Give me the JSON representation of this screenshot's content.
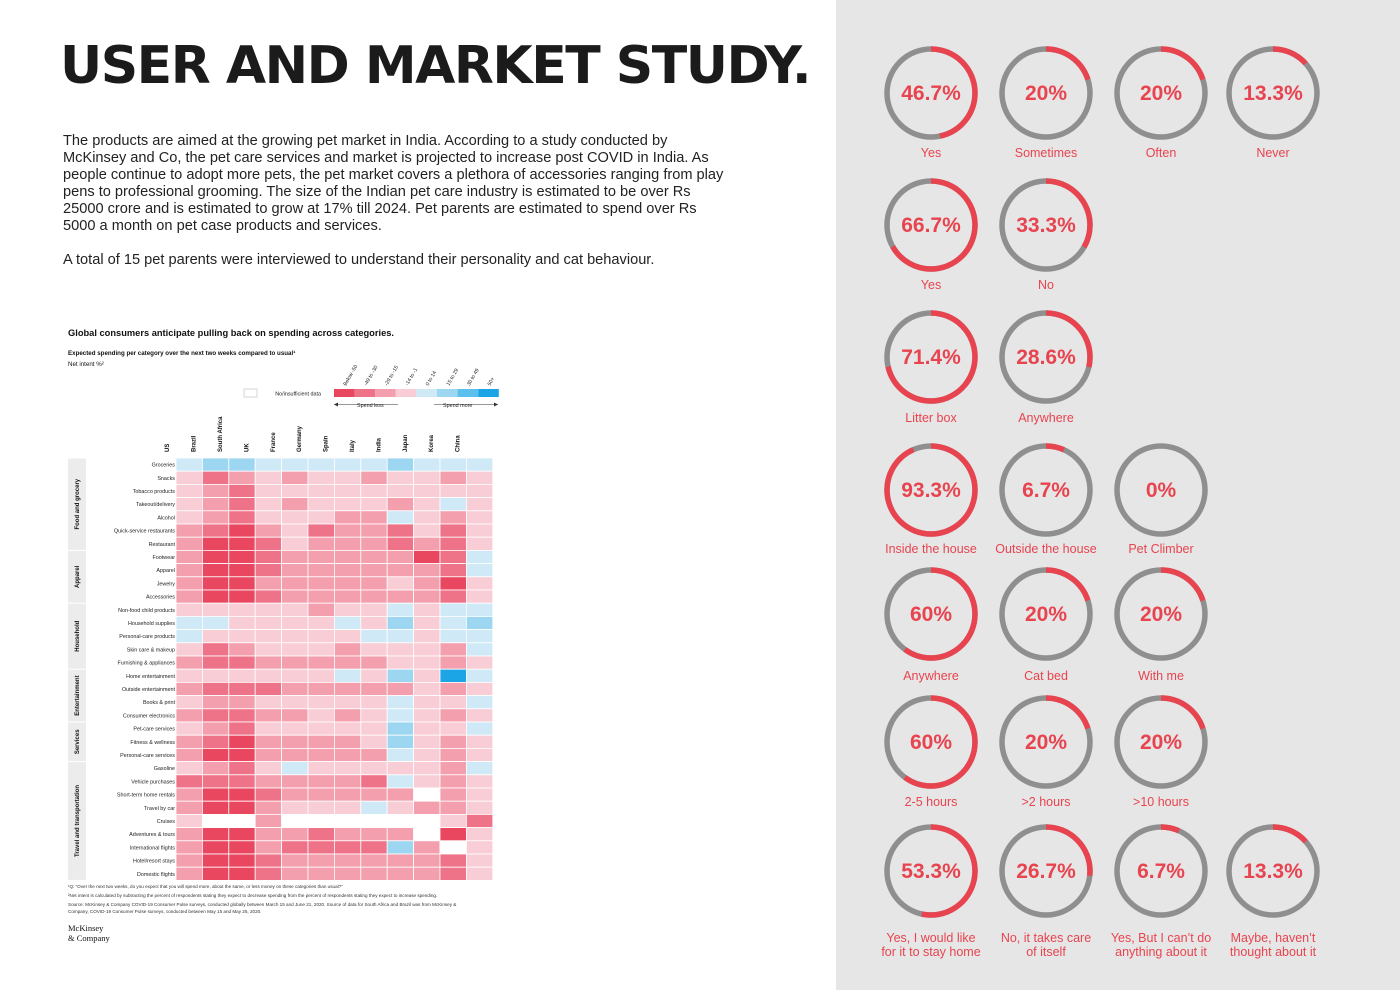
{
  "title": "USER AND MARKET STUDY.",
  "intro_paragraph_1": "The products are aimed at the growing pet market in India. According to a study conducted by McKinsey and Co, the pet care services and market is projected to increase post COVID in India. As people continue to adopt more pets, the pet market covers a plethora of accessories ranging from play pens to professional grooming. The size of the Indian pet care industry is estimated to be over Rs 25000 crore and is estimated to grow at 17% till 2024. Pet parents are estimated to spend over Rs 5000 a month on pet case products and services.",
  "intro_paragraph_2": "A total of 15 pet parents were interviewed to understand their personality and cat behaviour.",
  "heatmap": {
    "title": "Global consumers anticipate pulling back on spending across categories.",
    "subtitle": "Expected spending per category over the next two weeks compared to usual¹",
    "unit_label": "Net intent %²",
    "no_data_label": "No/insufficient data",
    "spend_less_label": "Spend less",
    "spend_more_label": "Spend more",
    "footnote_1": "¹Q: “Over the next two weeks, do you expect that you will spend more, about the same, or less money on these categories than usual?”",
    "footnote_2": "²Net intent is calculated by subtracting the percent of respondents stating they expect to decrease spending from the percent of respondents stating they expect to increase spending.",
    "source_1": "Source: McKinsey & Company COVID-19 Consumer Pulse surveys, conducted globally between March 15 and June 21, 2020. Source of data for South Africa and Brazil was from McKinsey &",
    "source_2": "Company, COVID-19 Consumer Pulse surveys, conducted between May 15 and May 25, 2020.",
    "logo_line_1": "McKinsey",
    "logo_line_2": "& Company"
  },
  "chart_data": [
    {
      "type": "heatmap",
      "title": "Global consumers anticipate pulling back on spending across categories.",
      "subtitle": "Expected spending per category over the next two weeks compared to usual¹",
      "unit": "Net intent %²",
      "legend": {
        "bins": [
          "Below -50",
          "-49 to -30",
          "-29 to -15",
          "-14 to -1",
          "0 to 14",
          "15 to 29",
          "30 to 49",
          "50+"
        ],
        "colors": [
          "#e8475f",
          "#ee7288",
          "#f49fad",
          "#f9cdd5",
          "#cfe9f7",
          "#9dd6f1",
          "#5cc0ee",
          "#1ba5e6"
        ],
        "no_data_color": "#ffffff",
        "no_data_label": "No/insufficient data",
        "placement": "top-right"
      },
      "columns": [
        "US",
        "Brazil",
        "South Africa",
        "UK",
        "France",
        "Germany",
        "Spain",
        "Italy",
        "India",
        "Japan",
        "Korea",
        "China"
      ],
      "groups": [
        {
          "name": "Food and grocery",
          "rows": [
            "Groceries",
            "Snacks",
            "Tobacco products",
            "Takeout/delivery",
            "Alcohol",
            "Quick-service restaurants",
            "Restaurant"
          ]
        },
        {
          "name": "Apparel",
          "rows": [
            "Footwear",
            "Apparel",
            "Jewelry",
            "Accessories"
          ]
        },
        {
          "name": "Household",
          "rows": [
            "Non-food child products",
            "Household supplies",
            "Personal-care products",
            "Skin care & makeup",
            "Furnishing & appliances"
          ]
        },
        {
          "name": "Entertainment",
          "rows": [
            "Home entertainment",
            "Outside entertainment",
            "Books & print",
            "Consumer electronics"
          ]
        },
        {
          "name": "Services",
          "rows": [
            "Pet-care services",
            "Fitness & wellness",
            "Personal-care services"
          ]
        },
        {
          "name": "Travel and transportation",
          "rows": [
            "Gasoline",
            "Vehicle purchases",
            "Short-term home rentals",
            "Travel by car",
            "Cruises",
            "Adventures & tours",
            "International flights",
            "Hotel/resort stays",
            "Domestic flights"
          ]
        }
      ],
      "bins_by_row": [
        [
          4,
          5,
          5,
          4,
          4,
          4,
          4,
          4,
          5,
          4,
          4,
          4
        ],
        [
          3,
          1,
          2,
          3,
          2,
          3,
          3,
          2,
          3,
          3,
          2,
          3
        ],
        [
          3,
          2,
          1,
          3,
          3,
          3,
          3,
          3,
          3,
          3,
          3,
          3
        ],
        [
          3,
          2,
          1,
          3,
          2,
          3,
          3,
          3,
          2,
          3,
          4,
          3
        ],
        [
          3,
          2,
          1,
          3,
          3,
          3,
          2,
          2,
          4,
          3,
          2,
          3
        ],
        [
          2,
          1,
          0,
          2,
          3,
          1,
          2,
          2,
          1,
          3,
          1,
          3
        ],
        [
          2,
          0,
          0,
          1,
          3,
          2,
          2,
          2,
          1,
          2,
          1,
          3
        ],
        [
          2,
          0,
          0,
          1,
          2,
          2,
          2,
          2,
          2,
          0,
          1,
          4
        ],
        [
          2,
          0,
          0,
          1,
          2,
          2,
          2,
          2,
          2,
          2,
          1,
          4
        ],
        [
          2,
          0,
          0,
          2,
          2,
          2,
          2,
          2,
          3,
          2,
          0,
          3
        ],
        [
          2,
          0,
          0,
          1,
          2,
          2,
          2,
          2,
          2,
          2,
          1,
          3
        ],
        [
          3,
          3,
          3,
          3,
          3,
          2,
          3,
          3,
          4,
          3,
          4,
          4
        ],
        [
          4,
          4,
          3,
          3,
          3,
          3,
          4,
          3,
          5,
          3,
          4,
          5
        ],
        [
          4,
          3,
          3,
          3,
          3,
          3,
          3,
          4,
          4,
          3,
          4,
          4
        ],
        [
          3,
          1,
          2,
          3,
          3,
          3,
          2,
          3,
          3,
          3,
          2,
          4
        ],
        [
          2,
          1,
          1,
          2,
          2,
          2,
          2,
          2,
          3,
          3,
          2,
          3
        ],
        [
          3,
          3,
          3,
          3,
          3,
          3,
          4,
          3,
          5,
          3,
          7,
          4
        ],
        [
          2,
          1,
          1,
          1,
          2,
          2,
          2,
          2,
          2,
          3,
          2,
          3
        ],
        [
          3,
          2,
          2,
          3,
          3,
          3,
          3,
          3,
          4,
          3,
          3,
          4
        ],
        [
          2,
          1,
          1,
          2,
          2,
          3,
          2,
          3,
          4,
          3,
          2,
          3
        ],
        [
          3,
          2,
          1,
          3,
          3,
          3,
          3,
          3,
          5,
          3,
          3,
          4
        ],
        [
          2,
          1,
          0,
          2,
          2,
          2,
          2,
          3,
          5,
          3,
          2,
          3
        ],
        [
          2,
          0,
          0,
          2,
          2,
          2,
          2,
          2,
          4,
          3,
          2,
          3
        ],
        [
          3,
          2,
          1,
          3,
          4,
          3,
          3,
          3,
          3,
          3,
          2,
          4
        ],
        [
          1,
          1,
          1,
          2,
          2,
          2,
          2,
          1,
          4,
          3,
          2,
          3
        ],
        [
          2,
          0,
          0,
          1,
          2,
          2,
          2,
          2,
          2,
          -1,
          2,
          3
        ],
        [
          2,
          0,
          0,
          2,
          3,
          3,
          3,
          4,
          3,
          2,
          2,
          3
        ],
        [
          3,
          -1,
          -1,
          2,
          -1,
          -1,
          -1,
          -1,
          -1,
          -1,
          3,
          1
        ],
        [
          2,
          0,
          0,
          2,
          2,
          1,
          2,
          2,
          2,
          -1,
          0,
          3
        ],
        [
          2,
          0,
          0,
          2,
          1,
          1,
          1,
          1,
          5,
          2,
          -1,
          3
        ],
        [
          2,
          0,
          0,
          1,
          2,
          2,
          2,
          2,
          2,
          2,
          1,
          3
        ],
        [
          2,
          0,
          0,
          1,
          2,
          2,
          2,
          2,
          2,
          2,
          1,
          3
        ]
      ]
    },
    {
      "type": "pie",
      "questions": [
        {
          "answers": [
            {
              "label": "Yes",
              "value": 46.7
            },
            {
              "label": "Sometimes",
              "value": 20
            },
            {
              "label": "Often",
              "value": 20
            },
            {
              "label": "Never",
              "value": 13.3
            }
          ]
        },
        {
          "answers": [
            {
              "label": "Yes",
              "value": 66.7
            },
            {
              "label": "No",
              "value": 33.3
            }
          ]
        },
        {
          "answers": [
            {
              "label": "Litter box",
              "value": 71.4
            },
            {
              "label": "Anywhere",
              "value": 28.6
            }
          ]
        },
        {
          "answers": [
            {
              "label": "Inside the house",
              "value": 93.3
            },
            {
              "label": "Outside the house",
              "value": 6.7
            },
            {
              "label": "Pet Climber",
              "value": 0
            }
          ]
        },
        {
          "answers": [
            {
              "label": "Anywhere",
              "value": 60
            },
            {
              "label": "Cat bed",
              "value": 20
            },
            {
              "label": "With me",
              "value": 20
            }
          ]
        },
        {
          "answers": [
            {
              "label": "2-5 hours",
              "value": 60
            },
            {
              "label": ">2 hours",
              "value": 20
            },
            {
              "label": ">10 hours",
              "value": 20
            }
          ]
        },
        {
          "answers": [
            {
              "label": "Yes, I would like for it to stay home",
              "value": 53.3
            },
            {
              "label": "No, it takes care of itself",
              "value": 26.7
            },
            {
              "label": "Yes, But I can’t do anything about it",
              "value": 6.7
            },
            {
              "label": "Maybe, haven’t thought about it",
              "value": 13.3
            }
          ]
        }
      ],
      "percent_labels": [
        [
          "46.7%",
          "20%",
          "20%",
          "13.3%"
        ],
        [
          "66.7%",
          "33.3%"
        ],
        [
          "71.4%",
          "28.6%"
        ],
        [
          "93.3%",
          "6.7%",
          "0%"
        ],
        [
          "60%",
          "20%",
          "20%"
        ],
        [
          "60%",
          "20%",
          "20%"
        ],
        [
          "53.3%",
          "26.7%",
          "6.7%",
          "13.3%"
        ]
      ],
      "answer_labels": [
        [
          [
            "Yes"
          ],
          [
            "Sometimes"
          ],
          [
            "Often"
          ],
          [
            "Never"
          ]
        ],
        [
          [
            "Yes"
          ],
          [
            "No"
          ]
        ],
        [
          [
            "Litter box"
          ],
          [
            "Anywhere"
          ]
        ],
        [
          [
            "Inside the house"
          ],
          [
            "Outside the house"
          ],
          [
            "Pet Climber"
          ]
        ],
        [
          [
            "Anywhere"
          ],
          [
            "Cat bed"
          ],
          [
            "With me"
          ]
        ],
        [
          [
            "2-5 hours"
          ],
          [
            ">2 hours"
          ],
          [
            ">10 hours"
          ]
        ],
        [
          [
            "Yes, I would like",
            "for it to stay home"
          ],
          [
            "No, it takes care",
            "of itself"
          ],
          [
            "Yes, But I can’t do",
            "anything about it"
          ],
          [
            "Maybe, haven’t",
            "thought about it"
          ]
        ]
      ],
      "colors": {
        "value_arc": "#e8444f",
        "remainder_arc": "#8f8f8f",
        "text": "#e8444f"
      }
    }
  ]
}
